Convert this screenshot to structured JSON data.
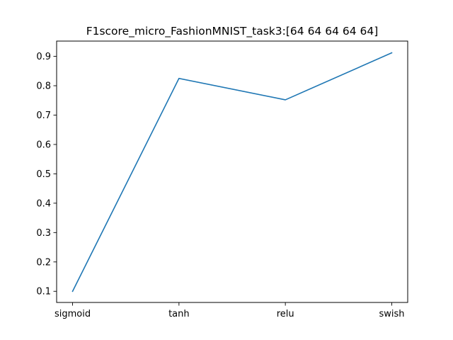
{
  "chart_data": {
    "type": "line",
    "title": "F1score_micro_FashionMNIST_task3:[64 64 64 64 64]",
    "xlabel": "",
    "ylabel": "",
    "categories": [
      "sigmoid",
      "tanh",
      "relu",
      "swish"
    ],
    "series": [
      {
        "values": [
          0.1,
          0.825,
          0.752,
          0.912
        ],
        "color": "#1f77b4"
      }
    ],
    "yticks": [
      "0.1",
      "0.2",
      "0.3",
      "0.4",
      "0.5",
      "0.6",
      "0.7",
      "0.8",
      "0.9"
    ],
    "ylim": [
      0.062,
      0.952
    ],
    "grid": false,
    "legend": "none"
  }
}
